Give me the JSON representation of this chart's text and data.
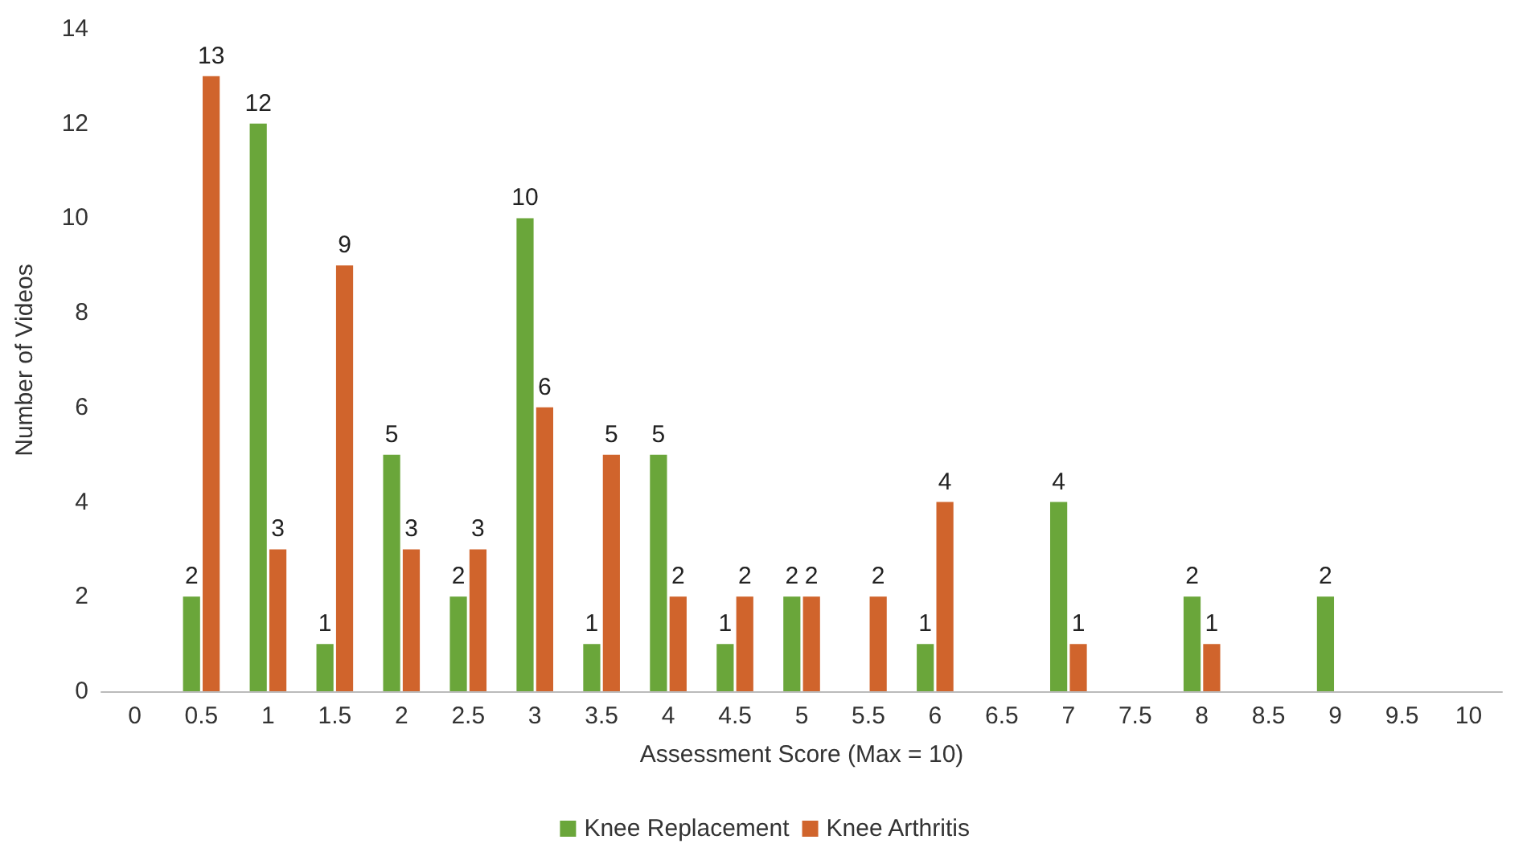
{
  "chart_data": {
    "type": "bar",
    "xlabel": "Assessment Score (Max = 10)",
    "ylabel": "Number of Videos",
    "categories": [
      "0",
      "0.5",
      "1",
      "1.5",
      "2",
      "2.5",
      "3",
      "3.5",
      "4",
      "4.5",
      "5",
      "5.5",
      "6",
      "6.5",
      "7",
      "7.5",
      "8",
      "8.5",
      "9",
      "9.5",
      "10"
    ],
    "series": [
      {
        "name": "Knee Replacement",
        "color": "#6aa63a",
        "values": [
          null,
          2,
          12,
          1,
          5,
          2,
          10,
          1,
          5,
          1,
          2,
          null,
          1,
          null,
          4,
          null,
          2,
          null,
          2,
          null,
          null
        ]
      },
      {
        "name": "Knee Arthritis",
        "color": "#d0642c",
        "values": [
          null,
          13,
          3,
          9,
          3,
          3,
          6,
          5,
          2,
          2,
          2,
          2,
          4,
          null,
          1,
          null,
          1,
          null,
          null,
          null,
          null
        ]
      }
    ],
    "ylim": [
      0,
      14
    ],
    "yticks": [
      0,
      2,
      4,
      6,
      8,
      10,
      12,
      14
    ],
    "grid": false,
    "legend": "bottom",
    "data_labels": true
  }
}
